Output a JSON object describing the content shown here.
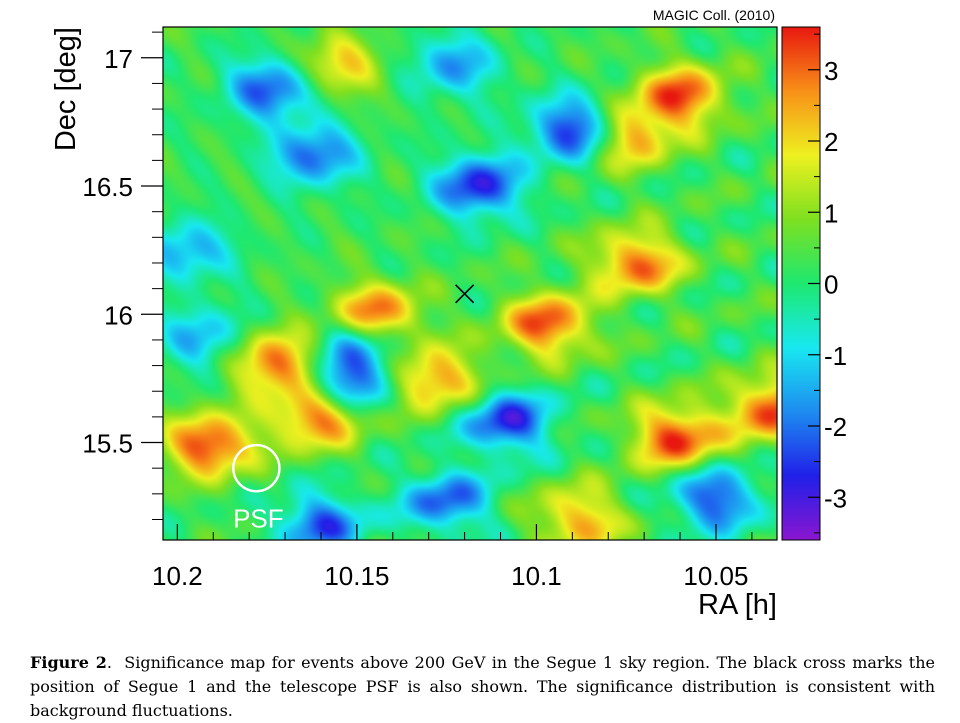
{
  "credit": "MAGIC Coll. (2010)",
  "psf_label": "PSF",
  "caption": {
    "label": "Figure 2",
    "text": "Significance map for events above 200 GeV in the Segue 1 sky region. The black cross marks the position of Segue 1 and the telescope PSF is also shown. The significance distribution is consistent with background fluctuations."
  },
  "chart_data": {
    "type": "heatmap",
    "xlabel": "RA [h]",
    "ylabel": "Dec [deg]",
    "x_ticks": [
      10.2,
      10.15,
      10.1,
      10.05
    ],
    "x_tick_labels": [
      "10.2",
      "10.15",
      "10.1",
      "10.05"
    ],
    "y_ticks": [
      15.5,
      16,
      16.5,
      17
    ],
    "y_tick_labels": [
      "15.5",
      "16",
      "16.5",
      "17"
    ],
    "xlim": [
      10.204,
      10.033
    ],
    "x_axis_reversed": true,
    "ylim": [
      15.12,
      17.12
    ],
    "colorbar": {
      "range": [
        -3.6,
        3.6
      ],
      "ticks": [
        -3,
        -2,
        -1,
        0,
        1,
        2,
        3
      ],
      "tick_labels": [
        "-3",
        "-2",
        "-1",
        "0",
        "1",
        "2",
        "3"
      ],
      "palette": [
        "#8a16d0",
        "#2020e8",
        "#1e8cf0",
        "#18e8f0",
        "#1ee870",
        "#7ee020",
        "#eef020",
        "#f89018",
        "#e81810"
      ]
    },
    "markers": [
      {
        "type": "cross",
        "name": "Segue 1",
        "ra": 10.12,
        "dec": 16.08,
        "color": "#000000"
      },
      {
        "type": "circle",
        "name": "PSF",
        "ra": 10.178,
        "dec": 15.4,
        "radius_deg": 0.09,
        "color": "#ffffff"
      }
    ],
    "significance_features": [
      {
        "ra": 10.145,
        "dec": 15.99,
        "sigma": 3.5
      },
      {
        "ra": 10.191,
        "dec": 15.49,
        "sigma": 3.2
      },
      {
        "ra": 10.172,
        "dec": 15.81,
        "sigma": 3.0
      },
      {
        "ra": 10.161,
        "dec": 15.6,
        "sigma": 2.9
      },
      {
        "ra": 10.128,
        "dec": 15.75,
        "sigma": 2.6
      },
      {
        "ra": 10.097,
        "dec": 15.96,
        "sigma": 3.0
      },
      {
        "ra": 10.072,
        "dec": 16.2,
        "sigma": 2.8
      },
      {
        "ra": 10.075,
        "dec": 16.69,
        "sigma": 2.5
      },
      {
        "ra": 10.06,
        "dec": 16.85,
        "sigma": 3.0
      },
      {
        "ra": 10.061,
        "dec": 15.52,
        "sigma": 3.2
      },
      {
        "ra": 10.034,
        "dec": 15.63,
        "sigma": 3.1
      },
      {
        "ra": 10.088,
        "dec": 15.2,
        "sigma": 2.3
      },
      {
        "ra": 10.155,
        "dec": 16.97,
        "sigma": 1.9
      },
      {
        "ra": 10.089,
        "dec": 16.72,
        "sigma": -3.2
      },
      {
        "ra": 10.116,
        "dec": 16.5,
        "sigma": -3.0
      },
      {
        "ra": 10.108,
        "dec": 15.58,
        "sigma": -2.9
      },
      {
        "ra": 10.174,
        "dec": 16.88,
        "sigma": -2.6
      },
      {
        "ra": 10.162,
        "dec": 16.62,
        "sigma": -2.4
      },
      {
        "ra": 10.153,
        "dec": 15.74,
        "sigma": -2.6
      },
      {
        "ra": 10.148,
        "dec": 15.9,
        "sigma": -2.2
      },
      {
        "ra": 10.16,
        "dec": 15.18,
        "sigma": -2.5
      },
      {
        "ra": 10.125,
        "dec": 15.27,
        "sigma": -2.4
      },
      {
        "ra": 10.05,
        "dec": 15.28,
        "sigma": -2.7
      },
      {
        "ra": 10.197,
        "dec": 16.25,
        "sigma": -1.8
      },
      {
        "ra": 10.123,
        "dec": 16.97,
        "sigma": -1.9
      },
      {
        "ra": 10.193,
        "dec": 15.91,
        "sigma": -1.7
      }
    ]
  }
}
